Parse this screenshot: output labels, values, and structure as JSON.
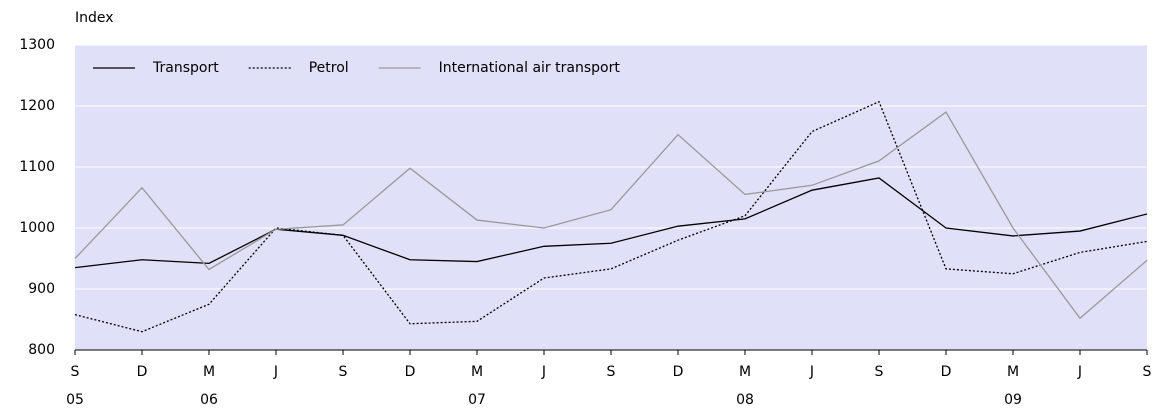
{
  "chart_data": {
    "type": "line",
    "y_label": "Index",
    "categories": [
      "S",
      "D",
      "M",
      "J",
      "S",
      "D",
      "M",
      "J",
      "S",
      "D",
      "M",
      "J",
      "S",
      "D",
      "M",
      "J",
      "S"
    ],
    "years": [
      "05",
      null,
      "06",
      null,
      null,
      null,
      "07",
      null,
      null,
      null,
      "08",
      null,
      null,
      null,
      "09",
      null,
      null
    ],
    "series": [
      {
        "name": "Transport",
        "color": "#000000",
        "style": "solid",
        "values": [
          935,
          948,
          942,
          998,
          988,
          948,
          945,
          970,
          975,
          1003,
          1015,
          1062,
          1082,
          1000,
          987,
          995,
          1023
        ]
      },
      {
        "name": "Petrol",
        "color": "#000000",
        "style": "dashed",
        "values": [
          858,
          830,
          875,
          1000,
          988,
          843,
          847,
          918,
          933,
          980,
          1020,
          1158,
          1207,
          933,
          925,
          960,
          978
        ]
      },
      {
        "name": "International air transport",
        "color": "#999999",
        "style": "solid",
        "values": [
          950,
          1066,
          932,
          998,
          1005,
          1098,
          1013,
          1000,
          1030,
          1153,
          1055,
          1070,
          1110,
          1190,
          1000,
          852,
          947
        ]
      }
    ],
    "ylim": [
      800,
      1300
    ],
    "yticks": [
      800,
      900,
      1000,
      1100,
      1200,
      1300
    ],
    "grid": true,
    "legend": "top-left",
    "background": "#e0e0f8"
  }
}
